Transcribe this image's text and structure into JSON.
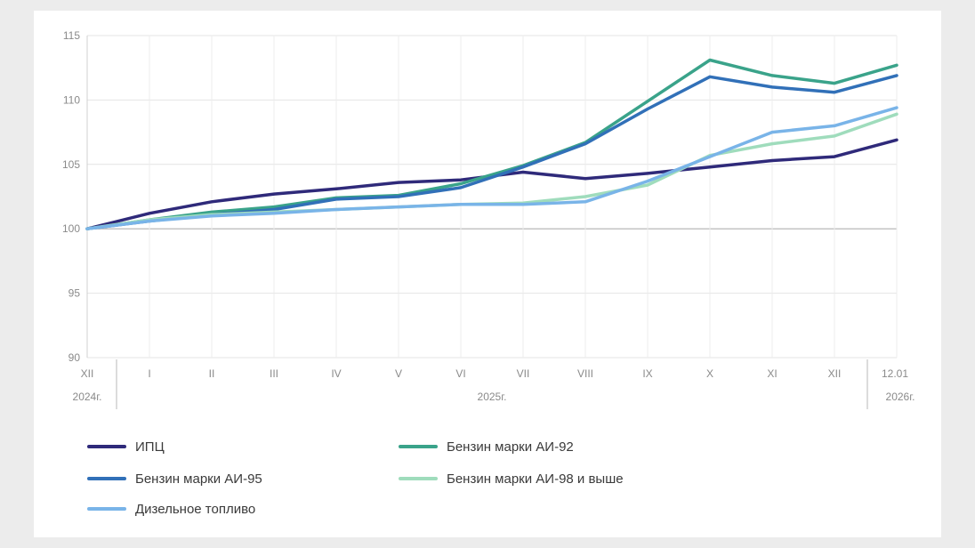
{
  "chart_data": {
    "type": "line",
    "title": "",
    "xlabel": "",
    "ylabel": "",
    "ylim": [
      90,
      115
    ],
    "yticks": [
      90,
      95,
      100,
      105,
      110,
      115
    ],
    "grid": true,
    "legend_position": "bottom",
    "categories": [
      "XII",
      "I",
      "II",
      "III",
      "IV",
      "V",
      "VI",
      "VII",
      "VIII",
      "IX",
      "X",
      "XI",
      "XII",
      "12.01"
    ],
    "year_labels": [
      "2024г.",
      "2025г.",
      "2026г."
    ],
    "series": [
      {
        "name": "ИПЦ",
        "color": "#2f2a7a",
        "values": [
          100.0,
          101.2,
          102.1,
          102.7,
          103.1,
          103.6,
          103.8,
          104.4,
          103.9,
          104.3,
          104.8,
          105.3,
          105.6,
          106.9
        ]
      },
      {
        "name": "Бензин марки АИ-92",
        "color": "#3aa38a",
        "values": [
          100.0,
          100.7,
          101.3,
          101.7,
          102.4,
          102.6,
          103.5,
          104.9,
          106.7,
          109.9,
          113.1,
          111.9,
          111.3,
          112.7
        ]
      },
      {
        "name": "Бензин марки АИ-95",
        "color": "#3170b8",
        "values": [
          100.0,
          100.6,
          101.1,
          101.5,
          102.3,
          102.5,
          103.2,
          104.8,
          106.6,
          109.3,
          111.8,
          111.0,
          110.6,
          111.9
        ]
      },
      {
        "name": "Бензин марки АИ-98 и выше",
        "color": "#9fdcbc",
        "values": [
          100.0,
          100.7,
          101.1,
          101.3,
          101.5,
          101.7,
          101.9,
          102.0,
          102.5,
          103.4,
          105.7,
          106.6,
          107.2,
          108.9
        ]
      },
      {
        "name": "Дизельное топливо",
        "color": "#79b4e8",
        "values": [
          100.0,
          100.6,
          101.0,
          101.2,
          101.5,
          101.7,
          101.9,
          101.9,
          102.1,
          103.7,
          105.6,
          107.5,
          108.0,
          109.4
        ]
      }
    ]
  }
}
